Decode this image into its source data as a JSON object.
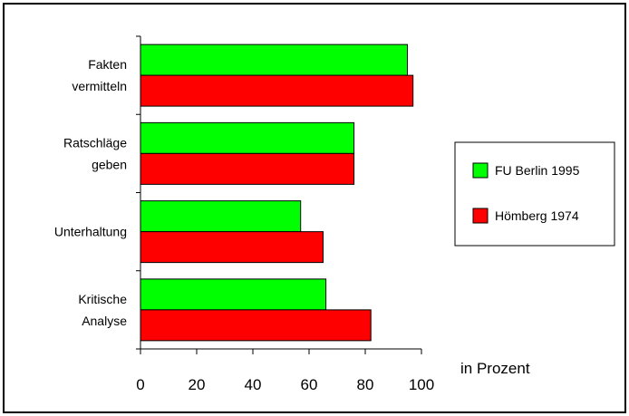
{
  "chart_data": {
    "type": "bar",
    "orientation": "horizontal",
    "categories": [
      [
        "Fakten",
        "vermitteln"
      ],
      [
        "Ratschläge",
        "geben"
      ],
      [
        "Unterhaltung"
      ],
      [
        "Kritische",
        "Analyse"
      ]
    ],
    "series": [
      {
        "name": "FU Berlin 1995",
        "color": "#00ff00",
        "values": [
          95,
          76,
          57,
          66
        ]
      },
      {
        "name": "Hömberg 1974",
        "color": "#ff0000",
        "values": [
          97,
          76,
          65,
          82
        ]
      }
    ],
    "xlabel": "in Prozent",
    "xlim": [
      0,
      100
    ],
    "xticks": [
      0,
      20,
      40,
      60,
      80,
      100
    ],
    "legend_position": "right",
    "grid": false
  }
}
